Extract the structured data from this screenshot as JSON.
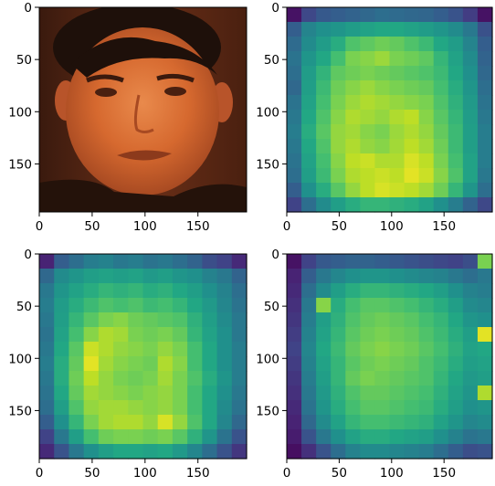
{
  "chart_data": [
    {
      "type": "image",
      "panel": "face-photo",
      "image_content": "face photograph",
      "xticks": [
        0,
        50,
        100,
        150
      ],
      "yticks": [
        0,
        50,
        100,
        150
      ],
      "xlim": [
        0,
        196
      ],
      "ylim": [
        196,
        0
      ],
      "palette": [
        "#3a1a0e",
        "#6b2f17",
        "#a84a22",
        "#d6692f",
        "#e98a4c"
      ]
    },
    {
      "type": "heatmap",
      "panel": "heatmap-1",
      "grid_size": 14,
      "colormap": "viridis",
      "xticks": [
        0,
        50,
        100,
        150
      ],
      "yticks": [
        0,
        50,
        100,
        150
      ],
      "xlim": [
        0,
        196
      ],
      "ylim": [
        196,
        0
      ],
      "values": [
        [
          0.05,
          0.22,
          0.28,
          0.3,
          0.32,
          0.34,
          0.36,
          0.35,
          0.34,
          0.33,
          0.3,
          0.26,
          0.18,
          0.05
        ],
        [
          0.3,
          0.45,
          0.5,
          0.52,
          0.55,
          0.58,
          0.6,
          0.6,
          0.58,
          0.55,
          0.52,
          0.48,
          0.4,
          0.25
        ],
        [
          0.35,
          0.48,
          0.55,
          0.62,
          0.72,
          0.75,
          0.78,
          0.76,
          0.72,
          0.68,
          0.6,
          0.55,
          0.45,
          0.3
        ],
        [
          0.38,
          0.52,
          0.6,
          0.7,
          0.8,
          0.82,
          0.85,
          0.8,
          0.78,
          0.75,
          0.66,
          0.58,
          0.48,
          0.32
        ],
        [
          0.36,
          0.55,
          0.65,
          0.75,
          0.78,
          0.8,
          0.78,
          0.76,
          0.74,
          0.72,
          0.68,
          0.6,
          0.5,
          0.34
        ],
        [
          0.34,
          0.56,
          0.68,
          0.78,
          0.82,
          0.85,
          0.82,
          0.8,
          0.78,
          0.76,
          0.7,
          0.62,
          0.52,
          0.36
        ],
        [
          0.38,
          0.58,
          0.7,
          0.8,
          0.85,
          0.88,
          0.86,
          0.84,
          0.82,
          0.8,
          0.72,
          0.64,
          0.54,
          0.38
        ],
        [
          0.4,
          0.6,
          0.72,
          0.82,
          0.88,
          0.86,
          0.84,
          0.88,
          0.9,
          0.82,
          0.74,
          0.66,
          0.55,
          0.4
        ],
        [
          0.42,
          0.62,
          0.74,
          0.84,
          0.86,
          0.82,
          0.8,
          0.85,
          0.88,
          0.84,
          0.76,
          0.68,
          0.56,
          0.42
        ],
        [
          0.4,
          0.6,
          0.72,
          0.84,
          0.88,
          0.84,
          0.82,
          0.86,
          0.9,
          0.86,
          0.78,
          0.68,
          0.56,
          0.42
        ],
        [
          0.38,
          0.58,
          0.7,
          0.82,
          0.9,
          0.92,
          0.88,
          0.88,
          0.94,
          0.9,
          0.8,
          0.7,
          0.58,
          0.42
        ],
        [
          0.36,
          0.56,
          0.68,
          0.8,
          0.88,
          0.9,
          0.92,
          0.9,
          0.96,
          0.92,
          0.82,
          0.72,
          0.58,
          0.4
        ],
        [
          0.3,
          0.5,
          0.62,
          0.74,
          0.84,
          0.9,
          0.94,
          0.92,
          0.9,
          0.86,
          0.78,
          0.66,
          0.52,
          0.36
        ],
        [
          0.2,
          0.36,
          0.48,
          0.56,
          0.62,
          0.66,
          0.66,
          0.64,
          0.62,
          0.58,
          0.5,
          0.42,
          0.32,
          0.22
        ]
      ]
    },
    {
      "type": "heatmap",
      "panel": "heatmap-2",
      "grid_size": 14,
      "colormap": "viridis",
      "xticks": [
        0,
        50,
        100,
        150
      ],
      "yticks": [
        0,
        50,
        100,
        150
      ],
      "xlim": [
        0,
        196
      ],
      "ylim": [
        196,
        0
      ],
      "values": [
        [
          0.1,
          0.3,
          0.36,
          0.42,
          0.44,
          0.4,
          0.42,
          0.38,
          0.4,
          0.36,
          0.32,
          0.24,
          0.2,
          0.12
        ],
        [
          0.34,
          0.48,
          0.52,
          0.56,
          0.58,
          0.56,
          0.58,
          0.54,
          0.56,
          0.52,
          0.5,
          0.44,
          0.4,
          0.32
        ],
        [
          0.4,
          0.52,
          0.58,
          0.62,
          0.66,
          0.64,
          0.66,
          0.62,
          0.64,
          0.6,
          0.56,
          0.5,
          0.44,
          0.36
        ],
        [
          0.42,
          0.55,
          0.62,
          0.68,
          0.72,
          0.7,
          0.72,
          0.68,
          0.7,
          0.66,
          0.6,
          0.54,
          0.46,
          0.38
        ],
        [
          0.4,
          0.56,
          0.66,
          0.74,
          0.8,
          0.82,
          0.78,
          0.76,
          0.74,
          0.72,
          0.64,
          0.56,
          0.48,
          0.4
        ],
        [
          0.38,
          0.58,
          0.7,
          0.82,
          0.88,
          0.86,
          0.8,
          0.78,
          0.8,
          0.76,
          0.66,
          0.58,
          0.5,
          0.4
        ],
        [
          0.4,
          0.6,
          0.74,
          0.92,
          0.88,
          0.84,
          0.82,
          0.8,
          0.84,
          0.8,
          0.7,
          0.6,
          0.5,
          0.42
        ],
        [
          0.42,
          0.62,
          0.76,
          0.96,
          0.86,
          0.82,
          0.8,
          0.78,
          0.88,
          0.82,
          0.7,
          0.6,
          0.5,
          0.42
        ],
        [
          0.4,
          0.62,
          0.78,
          0.9,
          0.84,
          0.8,
          0.78,
          0.8,
          0.86,
          0.8,
          0.72,
          0.62,
          0.52,
          0.42
        ],
        [
          0.38,
          0.6,
          0.76,
          0.86,
          0.84,
          0.82,
          0.8,
          0.82,
          0.84,
          0.8,
          0.7,
          0.6,
          0.5,
          0.4
        ],
        [
          0.36,
          0.56,
          0.72,
          0.84,
          0.86,
          0.86,
          0.84,
          0.82,
          0.84,
          0.8,
          0.7,
          0.6,
          0.48,
          0.38
        ],
        [
          0.3,
          0.5,
          0.66,
          0.8,
          0.86,
          0.88,
          0.88,
          0.84,
          0.94,
          0.84,
          0.72,
          0.6,
          0.46,
          0.34
        ],
        [
          0.2,
          0.4,
          0.56,
          0.7,
          0.78,
          0.8,
          0.8,
          0.78,
          0.8,
          0.74,
          0.64,
          0.52,
          0.38,
          0.26
        ],
        [
          0.12,
          0.26,
          0.4,
          0.5,
          0.56,
          0.6,
          0.6,
          0.58,
          0.6,
          0.54,
          0.46,
          0.36,
          0.26,
          0.16
        ]
      ]
    },
    {
      "type": "heatmap",
      "panel": "heatmap-3",
      "grid_size": 14,
      "colormap": "viridis",
      "xticks": [
        0,
        50,
        100,
        150
      ],
      "yticks": [
        0,
        50,
        100,
        150
      ],
      "xlim": [
        0,
        196
      ],
      "ylim": [
        196,
        0
      ],
      "values": [
        [
          0.05,
          0.2,
          0.28,
          0.3,
          0.32,
          0.32,
          0.3,
          0.28,
          0.26,
          0.24,
          0.22,
          0.2,
          0.24,
          0.8
        ],
        [
          0.1,
          0.3,
          0.4,
          0.46,
          0.5,
          0.52,
          0.52,
          0.5,
          0.48,
          0.46,
          0.44,
          0.4,
          0.36,
          0.4
        ],
        [
          0.12,
          0.36,
          0.48,
          0.56,
          0.62,
          0.66,
          0.66,
          0.64,
          0.62,
          0.6,
          0.56,
          0.5,
          0.44,
          0.42
        ],
        [
          0.14,
          0.4,
          0.82,
          0.62,
          0.7,
          0.74,
          0.74,
          0.72,
          0.7,
          0.66,
          0.62,
          0.56,
          0.48,
          0.46
        ],
        [
          0.16,
          0.42,
          0.56,
          0.64,
          0.72,
          0.76,
          0.78,
          0.76,
          0.74,
          0.7,
          0.66,
          0.6,
          0.52,
          0.5
        ],
        [
          0.18,
          0.44,
          0.58,
          0.66,
          0.74,
          0.78,
          0.8,
          0.78,
          0.76,
          0.72,
          0.68,
          0.62,
          0.56,
          0.96
        ],
        [
          0.2,
          0.46,
          0.6,
          0.68,
          0.76,
          0.8,
          0.82,
          0.8,
          0.78,
          0.74,
          0.7,
          0.64,
          0.58,
          0.6
        ],
        [
          0.18,
          0.44,
          0.58,
          0.66,
          0.74,
          0.78,
          0.8,
          0.78,
          0.76,
          0.72,
          0.68,
          0.62,
          0.56,
          0.58
        ],
        [
          0.16,
          0.42,
          0.56,
          0.66,
          0.76,
          0.8,
          0.78,
          0.76,
          0.74,
          0.72,
          0.66,
          0.6,
          0.54,
          0.56
        ],
        [
          0.14,
          0.4,
          0.54,
          0.64,
          0.72,
          0.76,
          0.76,
          0.74,
          0.72,
          0.7,
          0.64,
          0.58,
          0.52,
          0.88
        ],
        [
          0.12,
          0.38,
          0.52,
          0.62,
          0.7,
          0.74,
          0.74,
          0.72,
          0.7,
          0.68,
          0.62,
          0.56,
          0.5,
          0.52
        ],
        [
          0.1,
          0.34,
          0.48,
          0.58,
          0.66,
          0.7,
          0.7,
          0.68,
          0.66,
          0.64,
          0.58,
          0.52,
          0.46,
          0.48
        ],
        [
          0.08,
          0.26,
          0.4,
          0.5,
          0.58,
          0.62,
          0.62,
          0.6,
          0.58,
          0.56,
          0.5,
          0.44,
          0.38,
          0.4
        ],
        [
          0.04,
          0.14,
          0.26,
          0.36,
          0.44,
          0.48,
          0.48,
          0.46,
          0.44,
          0.42,
          0.36,
          0.3,
          0.24,
          0.26
        ]
      ]
    }
  ]
}
